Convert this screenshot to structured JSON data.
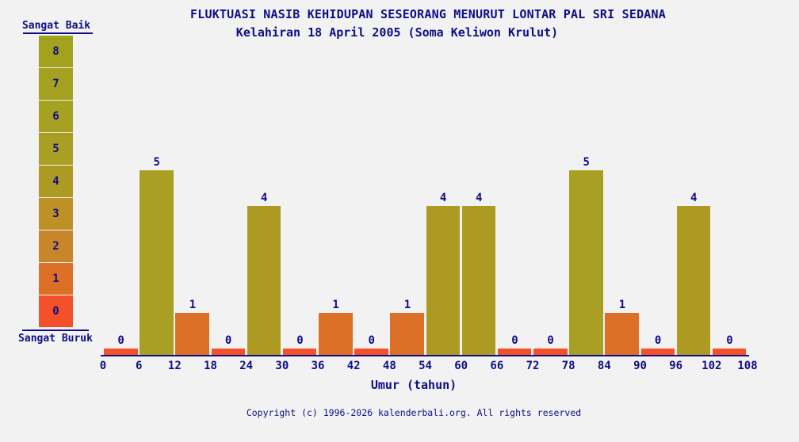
{
  "page": {
    "footer": "Copyright (c) 1996-2026 kalenderbali.org. All rights reserved"
  },
  "scale": {
    "top_label": "Sangat Baik",
    "bottom_label": "Sangat Buruk",
    "levels": [
      {
        "value": 8,
        "color": "#a2a21e"
      },
      {
        "value": 7,
        "color": "#a4a120"
      },
      {
        "value": 6,
        "color": "#a7a121"
      },
      {
        "value": 5,
        "color": "#a99f22"
      },
      {
        "value": 4,
        "color": "#ad9a22"
      },
      {
        "value": 3,
        "color": "#bd9126"
      },
      {
        "value": 2,
        "color": "#c8862b"
      },
      {
        "value": 1,
        "color": "#dc7026"
      },
      {
        "value": 0,
        "color": "#f4512a"
      }
    ]
  },
  "chart_data": {
    "type": "bar",
    "title": "FLUKTUASI NASIB KEHIDUPAN SESEORANG MENURUT LONTAR PAL SRI SEDANA",
    "subtitle": "Kelahiran 18 April 2005 (Soma Keliwon Krulut)",
    "xlabel": "Umur (tahun)",
    "ylabel": "",
    "x_ticks": [
      0,
      6,
      12,
      18,
      24,
      30,
      36,
      42,
      48,
      54,
      60,
      66,
      72,
      78,
      84,
      90,
      96,
      102,
      108
    ],
    "categories": [
      "0-6",
      "6-12",
      "12-18",
      "18-24",
      "24-30",
      "30-36",
      "36-42",
      "42-48",
      "48-54",
      "54-60",
      "60-66",
      "66-72",
      "72-78",
      "78-84",
      "84-90",
      "90-96",
      "96-102",
      "102-108"
    ],
    "values": [
      0,
      5,
      1,
      0,
      4,
      0,
      1,
      0,
      1,
      4,
      4,
      0,
      0,
      5,
      1,
      0,
      4,
      0
    ],
    "ylim": [
      0,
      8
    ],
    "grid": false,
    "legend_position": "left",
    "bar_colors_by_value": {
      "0": "#f4512a",
      "1": "#dc7026",
      "2": "#c8862b",
      "3": "#bd9126",
      "4": "#ad9a22",
      "5": "#a99f22",
      "6": "#a7a121",
      "7": "#a4a120",
      "8": "#a2a21e"
    }
  },
  "colors": {
    "background": "#f2f2f2",
    "text": "#0e0e85",
    "axis": "#0e0e85"
  }
}
